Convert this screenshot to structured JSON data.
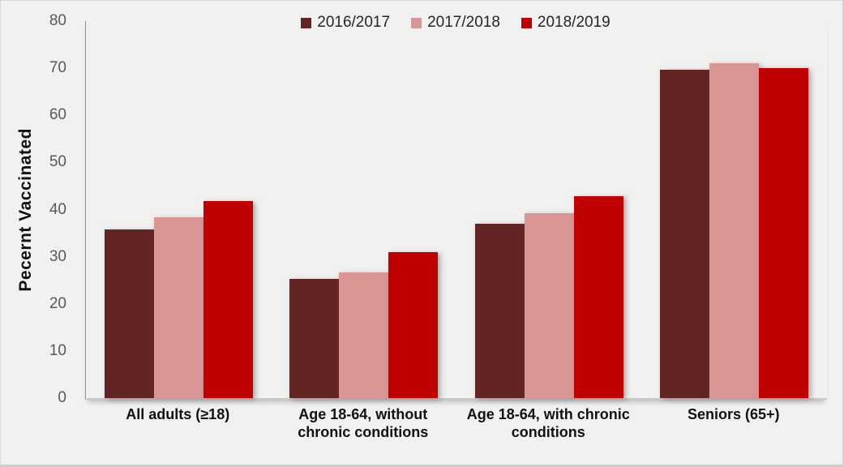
{
  "chart_data": {
    "type": "bar",
    "title": "",
    "ylabel": "Pecernt Vaccinated",
    "xlabel": "",
    "ylim": [
      0,
      80
    ],
    "yticks": [
      0,
      10,
      20,
      30,
      40,
      50,
      60,
      70,
      80
    ],
    "grid": false,
    "legend_position": "top-center",
    "categories": [
      "All adults (≥18)",
      "Age 18-64, without chronic conditions",
      "Age 18-64, with chronic conditions",
      "Seniors (65+)"
    ],
    "series": [
      {
        "name": "2016/2017",
        "color": "#632523",
        "values": [
          35.8,
          25.3,
          37.0,
          69.7
        ]
      },
      {
        "name": "2017/2018",
        "color": "#d99694",
        "values": [
          38.3,
          26.7,
          39.3,
          71.0
        ]
      },
      {
        "name": "2018/2019",
        "color": "#c00000",
        "values": [
          41.8,
          30.9,
          42.8,
          70.0
        ]
      }
    ]
  },
  "colors": {
    "background": "#f1f1f0",
    "frame_border": "#d9d9d9",
    "axis_line": "#8f8f8f",
    "baseline": "#c9c9c9",
    "tick_text": "#595959",
    "label_text": "#111111"
  }
}
